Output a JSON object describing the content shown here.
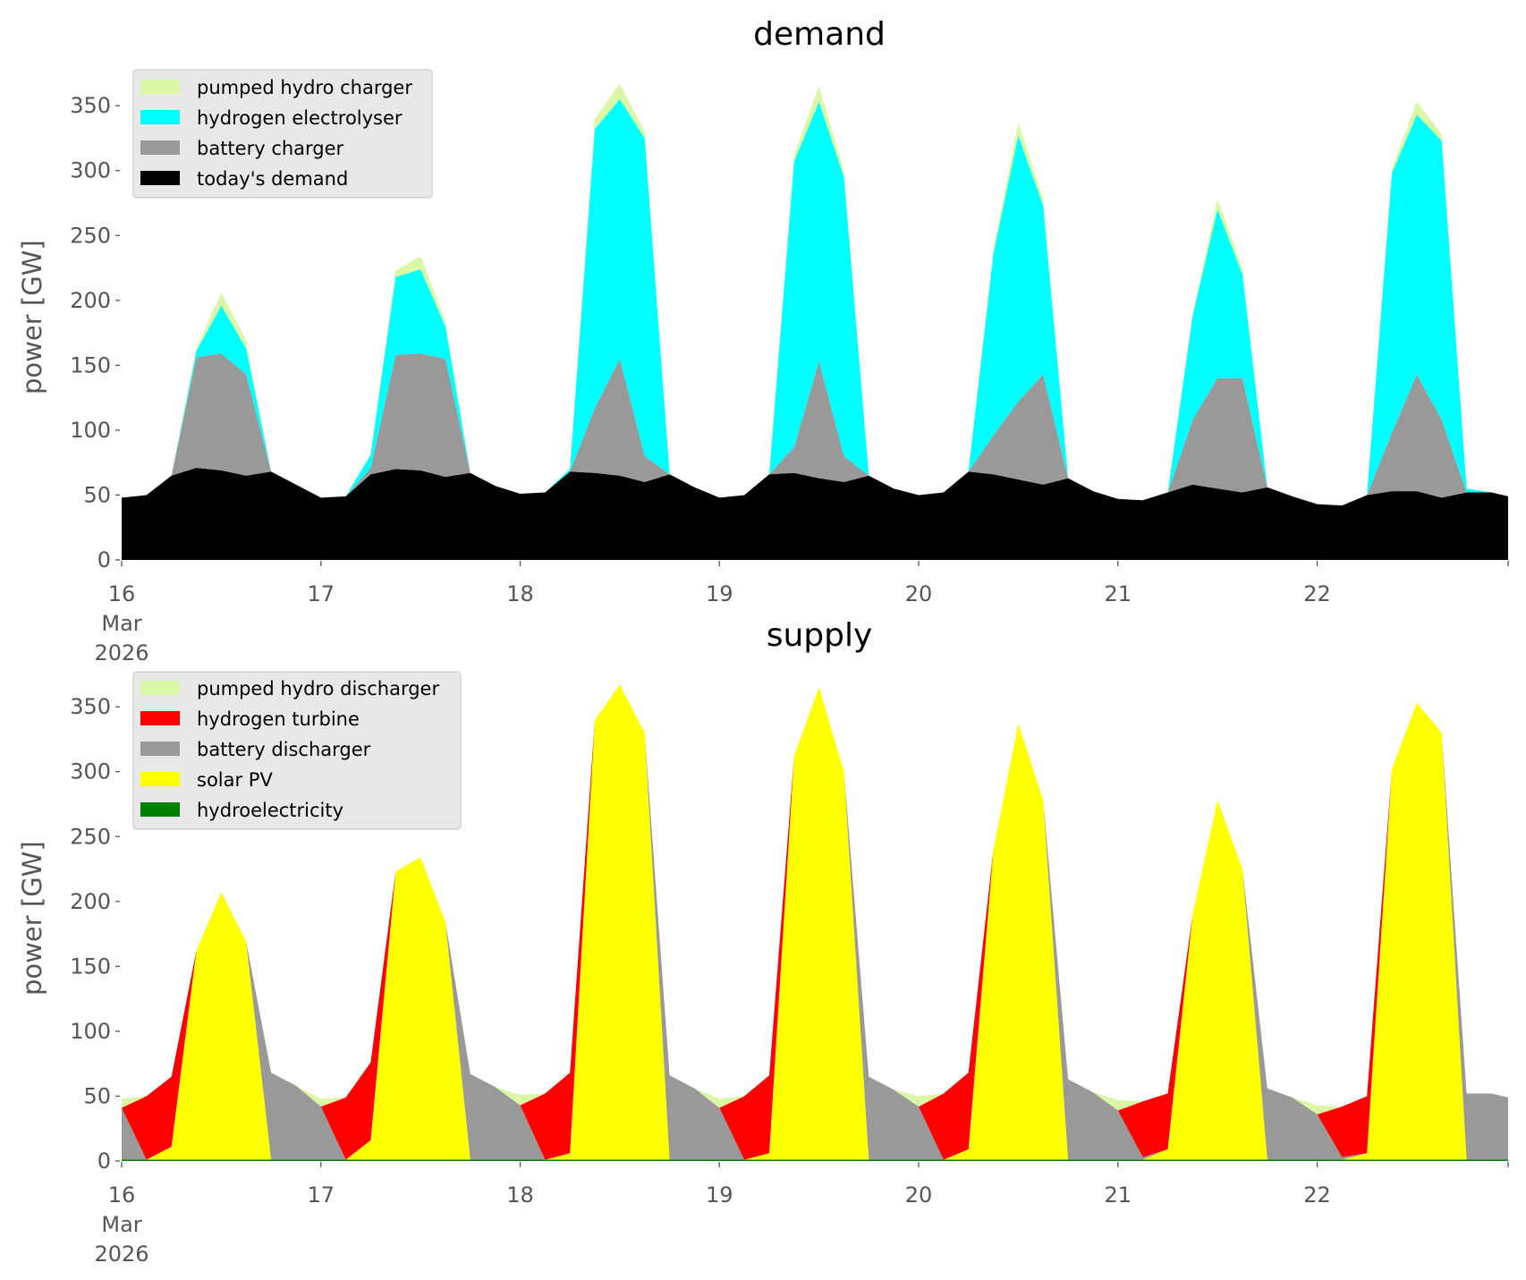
{
  "chart_data": [
    {
      "type": "area",
      "stacked": true,
      "title": "demand",
      "xlabel": "",
      "ylabel": "power [GW]",
      "x_unit": "hours since 16 Mar 2026 00:00",
      "xlim": [
        0,
        167
      ],
      "ylim": [
        0,
        375
      ],
      "grid": false,
      "legend_position": "top-left",
      "x_ticks": [
        {
          "hour": 0,
          "label": "16",
          "sub": [
            "Mar",
            "2026"
          ]
        },
        {
          "hour": 24,
          "label": "17"
        },
        {
          "hour": 48,
          "label": "18"
        },
        {
          "hour": 72,
          "label": "19"
        },
        {
          "hour": 96,
          "label": "20"
        },
        {
          "hour": 120,
          "label": "21"
        },
        {
          "hour": 144,
          "label": "22"
        }
      ],
      "y_ticks": [
        0,
        50,
        100,
        150,
        200,
        250,
        300,
        350
      ],
      "x": [
        0,
        3,
        6,
        9,
        12,
        15,
        18,
        21,
        24,
        27,
        30,
        33,
        36,
        39,
        42,
        45,
        48,
        51,
        54,
        57,
        60,
        63,
        66,
        69,
        72,
        75,
        78,
        81,
        84,
        87,
        90,
        93,
        96,
        99,
        102,
        105,
        108,
        111,
        114,
        117,
        120,
        123,
        126,
        129,
        132,
        135,
        138,
        141,
        144,
        147,
        150,
        153,
        156,
        159,
        162,
        165,
        167
      ],
      "series": [
        {
          "name": "today's demand",
          "color": "#000000",
          "values": [
            48,
            50,
            65,
            71,
            69,
            65,
            68,
            58,
            48,
            49,
            66,
            70,
            69,
            64,
            67,
            57,
            51,
            52,
            68,
            67,
            65,
            60,
            66,
            56,
            48,
            50,
            66,
            67,
            63,
            60,
            65,
            55,
            50,
            52,
            68,
            66,
            62,
            58,
            63,
            53,
            47,
            46,
            52,
            58,
            55,
            52,
            56,
            49,
            43,
            42,
            50,
            53,
            53,
            48,
            52,
            52,
            49
          ]
        },
        {
          "name": "battery charger",
          "color": "#999999",
          "values": [
            0,
            0,
            0,
            85,
            90,
            78,
            0,
            0,
            0,
            0,
            5,
            88,
            90,
            91,
            0,
            0,
            0,
            0,
            0,
            50,
            90,
            20,
            0,
            0,
            0,
            0,
            0,
            20,
            90,
            20,
            0,
            0,
            0,
            0,
            0,
            30,
            60,
            85,
            0,
            0,
            0,
            0,
            0,
            50,
            85,
            88,
            0,
            0,
            0,
            0,
            0,
            45,
            90,
            60,
            0,
            0,
            0
          ]
        },
        {
          "name": "hydrogen electrolyser",
          "color": "#00ffff",
          "values": [
            0,
            0,
            0,
            5,
            37,
            20,
            0,
            0,
            0,
            0,
            10,
            60,
            65,
            25,
            0,
            0,
            0,
            0,
            2,
            215,
            200,
            245,
            0,
            0,
            0,
            0,
            0,
            220,
            200,
            215,
            0,
            0,
            0,
            0,
            0,
            140,
            205,
            130,
            0,
            0,
            0,
            0,
            0,
            80,
            130,
            80,
            0,
            0,
            0,
            0,
            0,
            200,
            200,
            215,
            3,
            0,
            0
          ]
        },
        {
          "name": "pumped hydro charger",
          "color": "#daf7a6",
          "values": [
            0,
            0,
            0,
            2,
            10,
            6,
            0,
            0,
            0,
            0,
            0,
            5,
            10,
            4,
            0,
            0,
            0,
            0,
            0,
            8,
            12,
            5,
            0,
            0,
            0,
            0,
            0,
            5,
            12,
            5,
            0,
            0,
            0,
            0,
            0,
            4,
            10,
            5,
            0,
            0,
            0,
            0,
            0,
            2,
            8,
            5,
            0,
            0,
            0,
            0,
            0,
            4,
            10,
            5,
            0,
            0,
            0
          ]
        }
      ],
      "legend_order": [
        "pumped hydro charger",
        "hydrogen electrolyser",
        "battery charger",
        "today's demand"
      ]
    },
    {
      "type": "area",
      "stacked": true,
      "title": "supply",
      "xlabel": "",
      "ylabel": "power [GW]",
      "x_unit": "hours since 16 Mar 2026 00:00",
      "xlim": [
        0,
        167
      ],
      "ylim": [
        0,
        375
      ],
      "grid": false,
      "legend_position": "top-left",
      "x_ticks": [
        {
          "hour": 0,
          "label": "16",
          "sub": [
            "Mar",
            "2026"
          ]
        },
        {
          "hour": 24,
          "label": "17"
        },
        {
          "hour": 48,
          "label": "18"
        },
        {
          "hour": 72,
          "label": "19"
        },
        {
          "hour": 96,
          "label": "20"
        },
        {
          "hour": 120,
          "label": "21"
        },
        {
          "hour": 144,
          "label": "22"
        }
      ],
      "y_ticks": [
        0,
        50,
        100,
        150,
        200,
        250,
        300,
        350
      ],
      "x": [
        0,
        3,
        6,
        9,
        12,
        15,
        18,
        21,
        24,
        27,
        30,
        33,
        36,
        39,
        42,
        45,
        48,
        51,
        54,
        57,
        60,
        63,
        66,
        69,
        72,
        75,
        78,
        81,
        84,
        87,
        90,
        93,
        96,
        99,
        102,
        105,
        108,
        111,
        114,
        117,
        120,
        123,
        126,
        129,
        132,
        135,
        138,
        141,
        144,
        147,
        150,
        153,
        156,
        159,
        162,
        165,
        167
      ],
      "series": [
        {
          "name": "hydroelectricity",
          "color": "#008000",
          "values": [
            1,
            1,
            1,
            1,
            1,
            1,
            1,
            1,
            1,
            1,
            1,
            1,
            1,
            1,
            1,
            1,
            1,
            1,
            1,
            1,
            1,
            1,
            1,
            1,
            1,
            1,
            1,
            1,
            1,
            1,
            1,
            1,
            1,
            1,
            1,
            1,
            1,
            1,
            1,
            1,
            1,
            1,
            1,
            1,
            1,
            1,
            1,
            1,
            1,
            1,
            1,
            1,
            1,
            1,
            1,
            1,
            1
          ]
        },
        {
          "name": "solar PV",
          "color": "#ffff00",
          "values": [
            0,
            0,
            10,
            161,
            206,
            168,
            0,
            0,
            0,
            0,
            15,
            222,
            233,
            183,
            0,
            0,
            0,
            0,
            5,
            339,
            366,
            329,
            0,
            0,
            0,
            0,
            5,
            311,
            364,
            299,
            0,
            0,
            0,
            0,
            8,
            239,
            336,
            277,
            0,
            0,
            0,
            0,
            8,
            189,
            277,
            224,
            0,
            0,
            0,
            0,
            5,
            301,
            352,
            329,
            0,
            0,
            0
          ]
        },
        {
          "name": "battery discharger",
          "color": "#999999",
          "values": [
            40,
            0,
            0,
            0,
            0,
            0,
            67,
            57,
            41,
            0,
            0,
            0,
            0,
            0,
            66,
            56,
            42,
            0,
            0,
            0,
            0,
            0,
            65,
            55,
            40,
            0,
            0,
            0,
            0,
            0,
            64,
            54,
            41,
            0,
            0,
            0,
            0,
            0,
            62,
            52,
            38,
            2,
            0,
            0,
            0,
            0,
            55,
            48,
            35,
            2,
            0,
            0,
            0,
            0,
            51,
            51,
            48
          ]
        },
        {
          "name": "hydrogen turbine",
          "color": "#ff0000",
          "values": [
            0,
            49,
            54,
            0,
            0,
            0,
            0,
            0,
            0,
            48,
            60,
            0,
            0,
            0,
            0,
            0,
            0,
            51,
            62,
            0,
            0,
            0,
            0,
            0,
            0,
            49,
            60,
            0,
            0,
            0,
            0,
            0,
            0,
            51,
            59,
            0,
            0,
            0,
            0,
            0,
            0,
            43,
            43,
            0,
            0,
            0,
            0,
            0,
            0,
            39,
            44,
            0,
            0,
            0,
            0,
            0,
            0
          ]
        },
        {
          "name": "pumped hydro discharger",
          "color": "#daf7a6",
          "values": [
            7,
            0,
            0,
            0,
            0,
            0,
            0,
            0,
            6,
            0,
            0,
            0,
            0,
            0,
            0,
            0,
            8,
            0,
            0,
            0,
            0,
            0,
            0,
            0,
            7,
            0,
            0,
            0,
            0,
            0,
            0,
            0,
            8,
            0,
            0,
            0,
            0,
            0,
            0,
            0,
            8,
            0,
            0,
            0,
            0,
            0,
            0,
            0,
            7,
            0,
            0,
            0,
            0,
            0,
            0,
            0,
            0
          ]
        }
      ],
      "legend_order": [
        "pumped hydro discharger",
        "hydrogen turbine",
        "battery discharger",
        "solar PV",
        "hydroelectricity"
      ]
    }
  ]
}
